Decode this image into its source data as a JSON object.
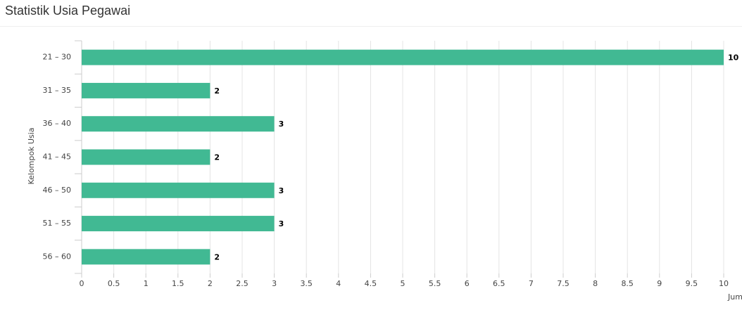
{
  "chart_data": {
    "type": "bar",
    "orientation": "horizontal",
    "title": "Statistik Usia Pegawai",
    "y_label": "Kelompok Usia",
    "x_label": "Jum",
    "categories": [
      "21 – 30",
      "31 – 35",
      "36 – 40",
      "41 – 45",
      "46 – 50",
      "51 – 55",
      "56 – 60"
    ],
    "values": [
      10,
      2,
      3,
      2,
      3,
      3,
      2
    ],
    "color": "#41b993",
    "xlim": [
      0,
      10
    ],
    "xticks": [
      0,
      0.5,
      1,
      1.5,
      2,
      2.5,
      3,
      3.5,
      4,
      4.5,
      5,
      5.5,
      6,
      6.5,
      7,
      7.5,
      8,
      8.5,
      9,
      9.5,
      10
    ],
    "grid": true
  }
}
